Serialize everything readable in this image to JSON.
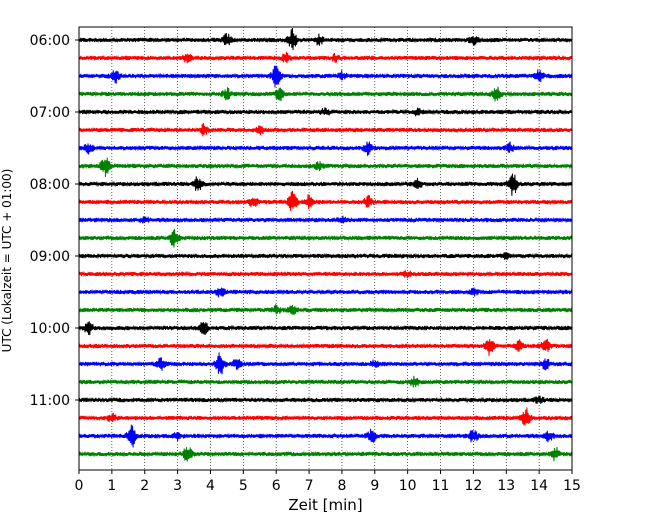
{
  "chart_data": {
    "type": "line",
    "title": "",
    "xlabel": "Zeit  [min]",
    "ylabel": "UTC (Lokalzeit = UTC + 01:00)",
    "xlim": [
      0,
      15
    ],
    "x_ticks": [
      "0",
      "1",
      "2",
      "3",
      "4",
      "5",
      "6",
      "7",
      "8",
      "9",
      "10",
      "11",
      "12",
      "13",
      "14",
      "15"
    ],
    "y_tick_labels": [
      "06:00",
      "07:00",
      "08:00",
      "09:00",
      "10:00",
      "11:00"
    ],
    "grid": "vertical-dotted",
    "legend": "none",
    "trace_colors": [
      "#000000",
      "#ff0000",
      "#0000ff",
      "#008000"
    ],
    "series": [
      {
        "start": "06:00",
        "events": [
          [
            4.5,
            0.5
          ],
          [
            6.5,
            1.0
          ],
          [
            7.3,
            0.4
          ],
          [
            12.0,
            0.35
          ]
        ]
      },
      {
        "start": "06:15",
        "events": [
          [
            3.3,
            0.35
          ],
          [
            6.3,
            0.4
          ],
          [
            7.8,
            0.3
          ]
        ]
      },
      {
        "start": "06:30",
        "events": [
          [
            1.1,
            0.55
          ],
          [
            6.0,
            1.0
          ],
          [
            8.0,
            0.35
          ],
          [
            14.0,
            0.45
          ]
        ]
      },
      {
        "start": "06:45",
        "events": [
          [
            4.5,
            0.45
          ],
          [
            6.1,
            0.55
          ],
          [
            12.7,
            0.65
          ]
        ]
      },
      {
        "start": "07:00",
        "events": [
          [
            7.5,
            0.3
          ],
          [
            10.3,
            0.25
          ]
        ]
      },
      {
        "start": "07:15",
        "events": [
          [
            3.8,
            0.5
          ],
          [
            5.5,
            0.35
          ]
        ]
      },
      {
        "start": "07:30",
        "events": [
          [
            0.3,
            0.45
          ],
          [
            8.8,
            0.55
          ],
          [
            13.1,
            0.4
          ]
        ]
      },
      {
        "start": "07:45",
        "events": [
          [
            0.8,
            0.9
          ],
          [
            7.3,
            0.3
          ]
        ]
      },
      {
        "start": "08:00",
        "events": [
          [
            3.6,
            0.7
          ],
          [
            10.3,
            0.45
          ],
          [
            13.2,
            1.0
          ]
        ]
      },
      {
        "start": "08:15",
        "events": [
          [
            5.3,
            0.45
          ],
          [
            6.5,
            0.9
          ],
          [
            7.0,
            0.55
          ],
          [
            8.8,
            0.5
          ]
        ]
      },
      {
        "start": "08:30",
        "events": [
          [
            2.0,
            0.25
          ],
          [
            8.0,
            0.25
          ]
        ]
      },
      {
        "start": "08:45",
        "events": [
          [
            2.9,
            0.85
          ]
        ]
      },
      {
        "start": "09:00",
        "events": [
          [
            13.0,
            0.2
          ]
        ]
      },
      {
        "start": "09:15",
        "events": [
          [
            10.0,
            0.25
          ]
        ]
      },
      {
        "start": "09:30",
        "events": [
          [
            4.3,
            0.45
          ],
          [
            12.0,
            0.25
          ]
        ]
      },
      {
        "start": "09:45",
        "events": [
          [
            6.0,
            0.4
          ],
          [
            6.5,
            0.35
          ]
        ]
      },
      {
        "start": "10:00",
        "events": [
          [
            0.3,
            0.55
          ],
          [
            3.8,
            0.55
          ]
        ]
      },
      {
        "start": "10:15",
        "events": [
          [
            12.5,
            0.75
          ],
          [
            13.4,
            0.55
          ],
          [
            14.2,
            0.65
          ]
        ]
      },
      {
        "start": "10:30",
        "events": [
          [
            2.5,
            0.5
          ],
          [
            4.3,
            1.0
          ],
          [
            4.8,
            0.4
          ],
          [
            9.0,
            0.3
          ],
          [
            14.2,
            0.45
          ]
        ]
      },
      {
        "start": "10:45",
        "events": [
          [
            10.2,
            0.4
          ]
        ]
      },
      {
        "start": "11:00",
        "events": [
          [
            14.0,
            0.3
          ]
        ]
      },
      {
        "start": "11:15",
        "events": [
          [
            1.0,
            0.4
          ],
          [
            13.6,
            0.85
          ]
        ]
      },
      {
        "start": "11:30",
        "events": [
          [
            1.6,
            1.0
          ],
          [
            3.0,
            0.3
          ],
          [
            8.9,
            0.6
          ],
          [
            12.0,
            0.55
          ],
          [
            14.3,
            0.4
          ]
        ]
      },
      {
        "start": "11:45",
        "events": [
          [
            3.3,
            0.65
          ],
          [
            14.5,
            0.55
          ]
        ]
      }
    ]
  }
}
